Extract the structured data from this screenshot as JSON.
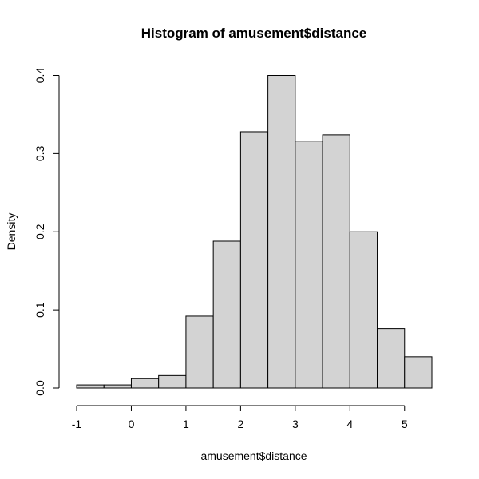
{
  "chart_data": {
    "type": "bar",
    "title": "Histogram of amusement$distance",
    "xlabel": "amusement$distance",
    "ylabel": "Density",
    "bin_edges": [
      -1,
      -0.5,
      0,
      0.5,
      1,
      1.5,
      2,
      2.5,
      3,
      3.5,
      4,
      4.5,
      5,
      5.5
    ],
    "values": [
      0.004,
      0.004,
      0.012,
      0.016,
      0.092,
      0.188,
      0.328,
      0.4,
      0.316,
      0.324,
      0.2,
      0.076,
      0.04
    ],
    "xlim": [
      -1,
      5.5
    ],
    "ylim": [
      0,
      0.4
    ],
    "x_ticks": [
      -1,
      0,
      1,
      2,
      3,
      4,
      5
    ],
    "x_tick_labels": [
      "-1",
      "0",
      "1",
      "2",
      "3",
      "4",
      "5"
    ],
    "y_ticks": [
      0,
      0.1,
      0.2,
      0.3,
      0.4
    ],
    "y_tick_labels": [
      "0.0",
      "0.1",
      "0.2",
      "0.3",
      "0.4"
    ],
    "bar_color": "#d3d3d3",
    "grid": false,
    "legend": "none"
  }
}
